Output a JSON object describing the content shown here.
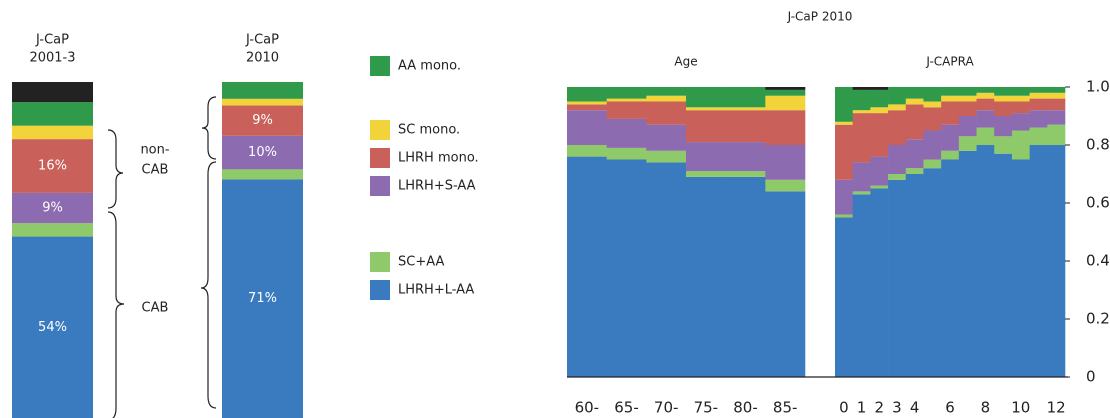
{
  "chart_data": [
    {
      "type": "bar",
      "stacked": true,
      "categories": [
        [
          "J-CaP",
          "2001-3"
        ],
        [
          "J-CaP",
          "2010"
        ]
      ],
      "ylim": [
        0,
        100
      ],
      "series": [
        {
          "name": "LHRH+L-AA",
          "color": "#3a7abf",
          "values": [
            54,
            71
          ],
          "value_labels": [
            "54%",
            "71%"
          ]
        },
        {
          "name": "SC+AA",
          "color": "#8ec96a",
          "values": [
            4,
            3
          ]
        },
        {
          "name": "LHRH+S-AA",
          "color": "#8c6bb1",
          "values": [
            9,
            10
          ],
          "value_labels": [
            "9%",
            "10%"
          ]
        },
        {
          "name": "LHRH mono.",
          "color": "#c9605a",
          "values": [
            16,
            9
          ],
          "value_labels": [
            "16%",
            "9%"
          ]
        },
        {
          "name": "SC mono.",
          "color": "#f2d43a",
          "values": [
            4,
            2
          ]
        },
        {
          "name": "AA mono.",
          "color": "#2e9a4a",
          "values": [
            7,
            5
          ]
        },
        {
          "name": null,
          "color": "#222222",
          "values": [
            6,
            0
          ]
        }
      ],
      "annotations": [
        [
          "non-",
          "CAB"
        ],
        [
          "CAB"
        ]
      ]
    },
    {
      "type": "bar",
      "stacked": true,
      "title": "J-CaP 2010",
      "ylim": [
        0,
        1
      ],
      "yticks": [
        0,
        0.2,
        0.4,
        0.6,
        0.8,
        {
          "value": 1,
          "label": "1.0"
        }
      ],
      "panels": [
        {
          "title": "Age",
          "categories": [
            "60-",
            "65-",
            "70-",
            "75-",
            "80-",
            "85-"
          ],
          "series": [
            {
              "color": "#3a7abf",
              "values": [
                0.76,
                0.75,
                0.74,
                0.69,
                0.69,
                0.64
              ]
            },
            {
              "color": "#8ec96a",
              "values": [
                0.04,
                0.04,
                0.04,
                0.02,
                0.02,
                0.04
              ]
            },
            {
              "color": "#8c6bb1",
              "values": [
                0.12,
                0.1,
                0.09,
                0.1,
                0.1,
                0.12
              ]
            },
            {
              "color": "#c9605a",
              "values": [
                0.02,
                0.06,
                0.08,
                0.11,
                0.11,
                0.12
              ]
            },
            {
              "color": "#f2d43a",
              "values": [
                0.01,
                0.01,
                0.02,
                0.01,
                0.01,
                0.05
              ]
            },
            {
              "color": "#2e9a4a",
              "values": [
                0.05,
                0.04,
                0.03,
                0.07,
                0.07,
                0.02
              ]
            },
            {
              "color": "#222222",
              "values": [
                0,
                0,
                0,
                0,
                0,
                0.01
              ]
            }
          ]
        },
        {
          "title": "J-CAPRA",
          "categories": [
            "0",
            "1",
            "2",
            "3",
            "4",
            null,
            "6",
            null,
            "8",
            null,
            "10",
            null,
            "12"
          ],
          "series": [
            {
              "color": "#3a7abf",
              "values": [
                0.55,
                0.63,
                0.65,
                0.68,
                0.7,
                0.72,
                0.75,
                0.78,
                0.8,
                0.77,
                0.75,
                0.8,
                0.8
              ]
            },
            {
              "color": "#8ec96a",
              "values": [
                0.01,
                0.01,
                0.01,
                0.02,
                0.02,
                0.03,
                0.03,
                0.05,
                0.06,
                0.06,
                0.1,
                0.06,
                0.07
              ]
            },
            {
              "color": "#8c6bb1",
              "values": [
                0.12,
                0.1,
                0.1,
                0.1,
                0.1,
                0.1,
                0.09,
                0.07,
                0.06,
                0.07,
                0.06,
                0.06,
                0.05
              ]
            },
            {
              "color": "#c9605a",
              "values": [
                0.19,
                0.17,
                0.15,
                0.12,
                0.12,
                0.08,
                0.08,
                0.05,
                0.04,
                0.05,
                0.04,
                0.04,
                0.04
              ]
            },
            {
              "color": "#f2d43a",
              "values": [
                0.01,
                0.01,
                0.02,
                0.02,
                0.02,
                0.02,
                0.02,
                0.02,
                0.02,
                0.02,
                0.02,
                0.02,
                0.02
              ]
            },
            {
              "color": "#2e9a4a",
              "values": [
                0.12,
                0.07,
                0.06,
                0.06,
                0.04,
                0.05,
                0.03,
                0.03,
                0.02,
                0.03,
                0.03,
                0.02,
                0.02
              ]
            },
            {
              "color": "#222222",
              "values": [
                0,
                0.01,
                0.01,
                0,
                0,
                0,
                0,
                0,
                0,
                0,
                0,
                0,
                0
              ]
            }
          ]
        }
      ]
    }
  ]
}
